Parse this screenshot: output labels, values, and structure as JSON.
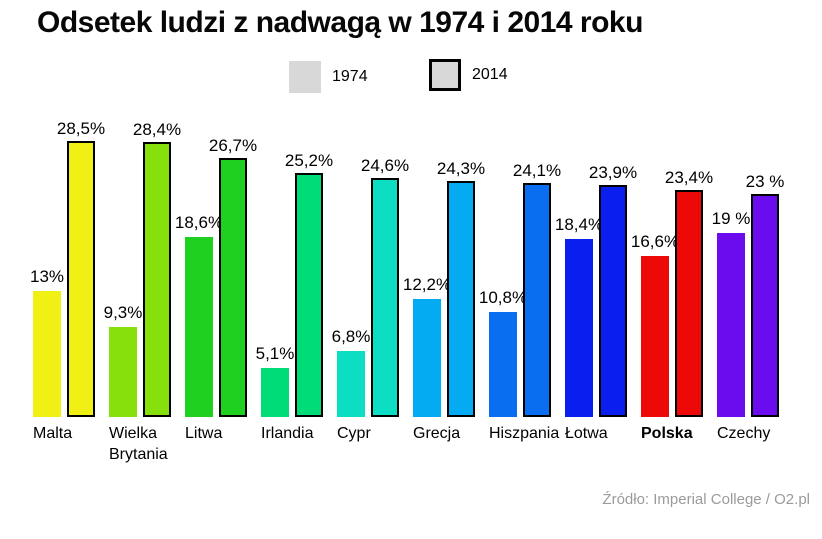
{
  "title": "Odsetek ludzi z nadwagą w 1974 i 2014 roku",
  "legend": {
    "items": [
      {
        "label": "1974",
        "swatch_color": "#d8d8d8",
        "bordered": false
      },
      {
        "label": "2014",
        "swatch_color": "#d8d8d8",
        "bordered": true
      }
    ]
  },
  "source": "Źródło: Imperial College / O2.pl",
  "chart_data": {
    "type": "bar",
    "title": "Odsetek ludzi z nadwagą w 1974 i 2014 roku",
    "series_names": [
      "1974",
      "2014"
    ],
    "unit": "%",
    "ylim": [
      0,
      30
    ],
    "grid": false,
    "legend_position": "top-center",
    "categories": [
      "Malta",
      "Wielka Brytania",
      "Litwa",
      "Irlandia",
      "Cypr",
      "Grecja",
      "Hiszpania",
      "Łotwa",
      "Polska",
      "Czechy"
    ],
    "groups": [
      {
        "country": "Malta",
        "label_lines": [
          "Malta"
        ],
        "bold": false,
        "color": "#f0f014",
        "bars": [
          {
            "series": "1974",
            "value": 13,
            "label": "13%"
          },
          {
            "series": "2014",
            "value": 28.5,
            "label": "28,5%"
          }
        ]
      },
      {
        "country": "Wielka Brytania",
        "label_lines": [
          "Wielka",
          "Brytania"
        ],
        "bold": false,
        "color": "#87e00c",
        "bars": [
          {
            "series": "1974",
            "value": 9.3,
            "label": "9,3%"
          },
          {
            "series": "2014",
            "value": 28.4,
            "label": "28,4%"
          }
        ]
      },
      {
        "country": "Litwa",
        "label_lines": [
          "Litwa"
        ],
        "bold": false,
        "color": "#20d020",
        "bars": [
          {
            "series": "1974",
            "value": 18.6,
            "label": "18,6%"
          },
          {
            "series": "2014",
            "value": 26.7,
            "label": "26,7%"
          }
        ]
      },
      {
        "country": "Irlandia",
        "label_lines": [
          "Irlandia"
        ],
        "bold": false,
        "color": "#00dc78",
        "bars": [
          {
            "series": "1974",
            "value": 5.1,
            "label": "5,1%"
          },
          {
            "series": "2014",
            "value": 25.2,
            "label": "25,2%"
          }
        ]
      },
      {
        "country": "Cypr",
        "label_lines": [
          "Cypr"
        ],
        "bold": false,
        "color": "#0cdec3",
        "bars": [
          {
            "series": "1974",
            "value": 6.8,
            "label": "6,8%"
          },
          {
            "series": "2014",
            "value": 24.6,
            "label": "24,6%"
          }
        ]
      },
      {
        "country": "Grecja",
        "label_lines": [
          "Grecja"
        ],
        "bold": false,
        "color": "#05abf2",
        "bars": [
          {
            "series": "1974",
            "value": 12.2,
            "label": "12,2%"
          },
          {
            "series": "2014",
            "value": 24.3,
            "label": "24,3%"
          }
        ]
      },
      {
        "country": "Hiszpania",
        "label_lines": [
          "Hiszpania"
        ],
        "bold": false,
        "color": "#0a6ef0",
        "bars": [
          {
            "series": "1974",
            "value": 10.8,
            "label": "10,8%"
          },
          {
            "series": "2014",
            "value": 24.1,
            "label": "24,1%"
          }
        ]
      },
      {
        "country": "Łotwa",
        "label_lines": [
          "Łotwa"
        ],
        "bold": false,
        "color": "#0a1ef0",
        "bars": [
          {
            "series": "1974",
            "value": 18.4,
            "label": "18,4%"
          },
          {
            "series": "2014",
            "value": 23.9,
            "label": "23,9%"
          }
        ]
      },
      {
        "country": "Polska",
        "label_lines": [
          "Polska"
        ],
        "bold": true,
        "color": "#ee0909",
        "bars": [
          {
            "series": "1974",
            "value": 16.6,
            "label": "16,6%"
          },
          {
            "series": "2014",
            "value": 23.4,
            "label": "23,4%"
          }
        ]
      },
      {
        "country": "Czechy",
        "label_lines": [
          "Czechy"
        ],
        "bold": false,
        "color": "#6a0cee",
        "bars": [
          {
            "series": "1974",
            "value": 19,
            "label": "19 %"
          },
          {
            "series": "2014",
            "value": 23,
            "label": "23 %"
          }
        ]
      }
    ]
  }
}
